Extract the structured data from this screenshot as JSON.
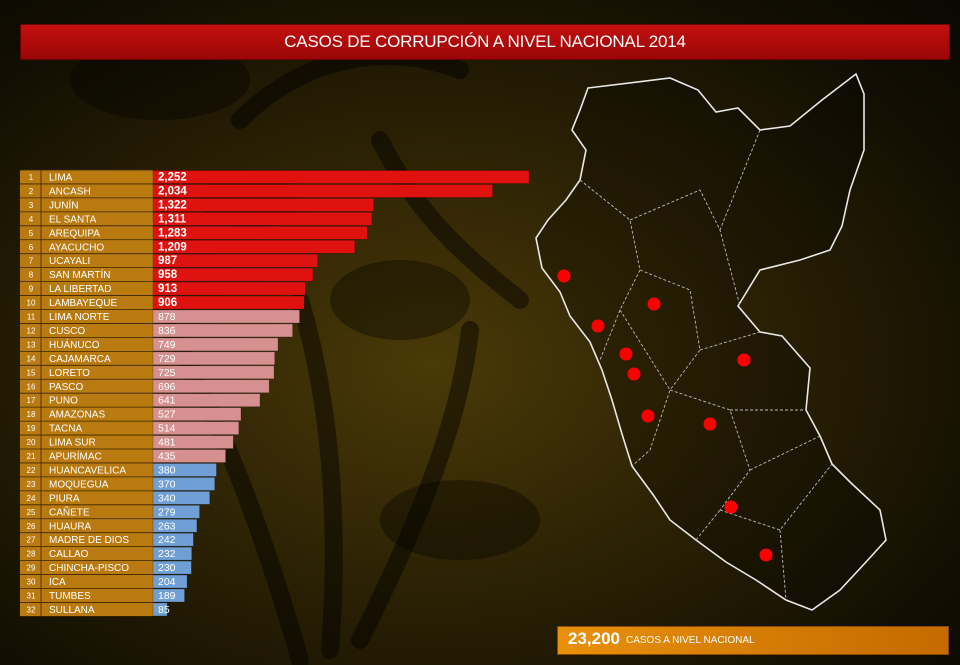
{
  "title": "CASOS DE CORRUPCIÓN A NIVEL NACIONAL 2014",
  "total": {
    "value": "23,200",
    "label": "CASOS A NIVEL NACIONAL"
  },
  "colors": {
    "top10": "#e0120f",
    "mid": "#d69090",
    "low": "#6f9fd4",
    "rank_panel": "#b97a10",
    "title_bg": "#b80b0b",
    "total_bg": "#e08a08",
    "map_marker": "#ff0000"
  },
  "chart_data": {
    "type": "bar",
    "orientation": "horizontal",
    "title": "CASOS DE CORRUPCIÓN A NIVEL NACIONAL 2014",
    "ranks": [
      "1",
      "2",
      "3",
      "4",
      "5",
      "6",
      "7",
      "8",
      "9",
      "10",
      "11",
      "12",
      "13",
      "14",
      "15",
      "16",
      "17",
      "18",
      "19",
      "20",
      "21",
      "22",
      "23",
      "24",
      "25",
      "26",
      "27",
      "28",
      "29",
      "30",
      "31",
      "32"
    ],
    "categories": [
      "LIMA",
      "ANCASH",
      "JUNÍN",
      "EL SANTA",
      "AREQUIPA",
      "AYACUCHO",
      "UCAYALI",
      "SAN MARTÍN",
      "LA LIBERTAD",
      "LAMBAYEQUE",
      "LIMA NORTE",
      "CUSCO",
      "HUÁNUCO",
      "CAJAMARCA",
      "LORETO",
      "PASCO",
      "PUNO",
      "AMAZONAS",
      "TACNA",
      "LIMA SUR",
      "APURÍMAC",
      "HUANCAVELICA",
      "MOQUEGUA",
      "PIURA",
      "CAÑETE",
      "HUAURA",
      "MADRE DE DIOS",
      "CALLAO",
      "CHINCHA-PISCO",
      "ICA",
      "TUMBES",
      "SULLANA"
    ],
    "values": [
      2252,
      2034,
      1322,
      1311,
      1283,
      1209,
      987,
      958,
      913,
      906,
      878,
      836,
      749,
      729,
      725,
      696,
      641,
      527,
      514,
      481,
      435,
      380,
      370,
      340,
      279,
      263,
      242,
      232,
      230,
      204,
      189,
      85
    ],
    "value_labels": [
      "2,252",
      "2,034",
      "1,322",
      "1,311",
      "1,283",
      "1,209",
      "987",
      "958",
      "913",
      "906",
      "878",
      "836",
      "749",
      "729",
      "725",
      "696",
      "641",
      "527",
      "514",
      "481",
      "435",
      "380",
      "370",
      "340",
      "279",
      "263",
      "242",
      "232",
      "230",
      "204",
      "189",
      "85"
    ],
    "groups": [
      {
        "from": 1,
        "to": 10,
        "color": "#e0120f"
      },
      {
        "from": 11,
        "to": 21,
        "color": "#d69090"
      },
      {
        "from": 22,
        "to": 32,
        "color": "#6f9fd4"
      }
    ]
  }
}
